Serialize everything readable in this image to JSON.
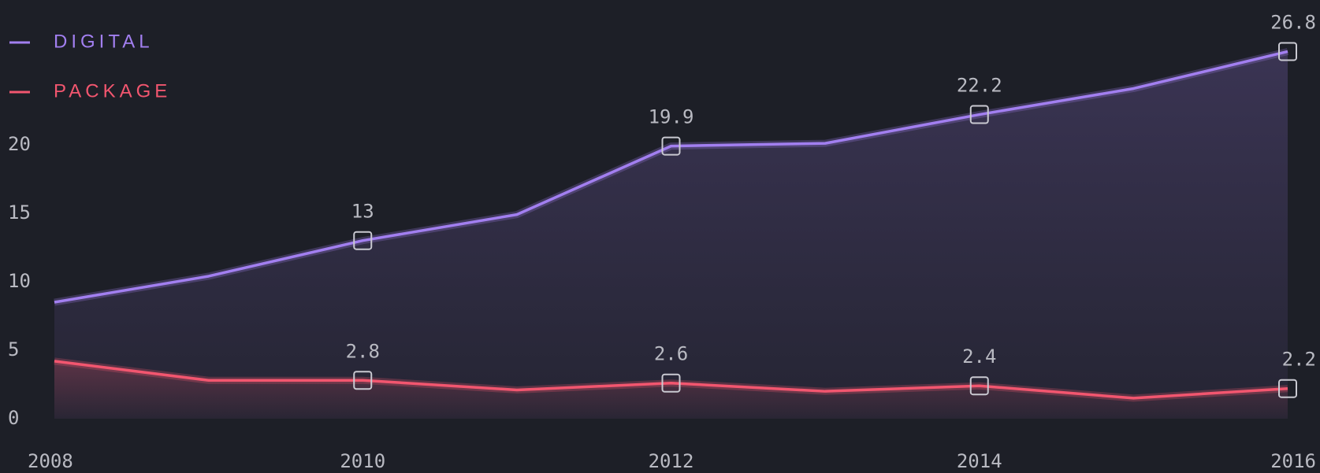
{
  "chart_data": {
    "type": "line",
    "x": [
      2008,
      2009,
      2010,
      2011,
      2012,
      2013,
      2014,
      2015,
      2016
    ],
    "series": [
      {
        "name": "DIGITAL",
        "color": "#a27ff0",
        "values": [
          8.5,
          10.4,
          13,
          14.9,
          19.9,
          20.1,
          22.2,
          24.1,
          26.8
        ],
        "value_labels": [
          null,
          null,
          "13",
          null,
          "19.9",
          null,
          "22.2",
          null,
          "26.8"
        ]
      },
      {
        "name": "PACKAGE",
        "color": "#f2566f",
        "values": [
          4.2,
          2.8,
          2.8,
          2.1,
          2.6,
          2.0,
          2.4,
          1.5,
          2.2
        ],
        "value_labels": [
          null,
          null,
          "2.8",
          null,
          "2.6",
          null,
          "2.4",
          null,
          "2.2"
        ]
      }
    ],
    "xlim": [
      2008,
      2016
    ],
    "xticks": [
      2008,
      2010,
      2012,
      2014,
      2016
    ],
    "ylim": [
      0,
      27
    ],
    "yticks": [
      0,
      5,
      10,
      15,
      20
    ],
    "legend": "top-left"
  }
}
